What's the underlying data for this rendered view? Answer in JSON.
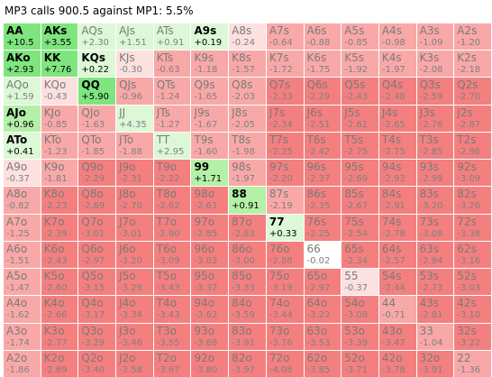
{
  "title": "MP3 calls 900.5 against MP1: 5.5%",
  "colors": {
    "call_strong": "#7fe57f",
    "call_mid": "#b4f0a8",
    "call_light": "#dcf8d6",
    "neutral": "#ffffff",
    "fold_light": "#fde0e0",
    "fold_mid": "#f9a8a8",
    "fold_strong": "#f47f7f"
  },
  "grid": {
    "rows": [
      [
        [
          "AA",
          "+10.5",
          "c"
        ],
        [
          "AKs",
          "+3.55",
          "c"
        ],
        [
          "AQs",
          "+2.30",
          "f"
        ],
        [
          "AJs",
          "+1.51",
          "f"
        ],
        [
          "ATs",
          "+0.91",
          "f"
        ],
        [
          "A9s",
          "+0.19",
          "c"
        ],
        [
          "A8s",
          "-0.24",
          "f"
        ],
        [
          "A7s",
          "-0.64",
          "f"
        ],
        [
          "A6s",
          "-0.88",
          "f"
        ],
        [
          "A5s",
          "-0.85",
          "f"
        ],
        [
          "A4s",
          "-0.98",
          "f"
        ],
        [
          "A3s",
          "-1.09",
          "f"
        ],
        [
          "A2s",
          "-1.20",
          "f"
        ]
      ],
      [
        [
          "AKo",
          "+2.93",
          "c"
        ],
        [
          "KK",
          "+7.76",
          "c"
        ],
        [
          "KQs",
          "+0.22",
          "c"
        ],
        [
          "KJs",
          "-0.30",
          "f"
        ],
        [
          "KTs",
          "-0.63",
          "f"
        ],
        [
          "K9s",
          "-1.18",
          "f"
        ],
        [
          "K8s",
          "-1.57",
          "f"
        ],
        [
          "K7s",
          "-1.72",
          "f"
        ],
        [
          "K6s",
          "-1.75",
          "f"
        ],
        [
          "K5s",
          "-1.92",
          "f"
        ],
        [
          "K4s",
          "-1.97",
          "f"
        ],
        [
          "K3s",
          "-2.08",
          "f"
        ],
        [
          "K2s",
          "-2.18",
          "f"
        ]
      ],
      [
        [
          "AQo",
          "+1.59",
          "f"
        ],
        [
          "KQo",
          "-0.43",
          "f"
        ],
        [
          "QQ",
          "+5.90",
          "c"
        ],
        [
          "QJs",
          "-0.96",
          "f"
        ],
        [
          "QTs",
          "-1.24",
          "f"
        ],
        [
          "Q9s",
          "-1.65",
          "f"
        ],
        [
          "Q8s",
          "-2.03",
          "f"
        ],
        [
          "Q7s",
          "-2.33",
          "f"
        ],
        [
          "Q6s",
          "-2.29",
          "f"
        ],
        [
          "Q5s",
          "-2.43",
          "f"
        ],
        [
          "Q4s",
          "-2.48",
          "f"
        ],
        [
          "Q3s",
          "-2.59",
          "f"
        ],
        [
          "Q2s",
          "-2.70",
          "f"
        ]
      ],
      [
        [
          "AJo",
          "+0.96",
          "c"
        ],
        [
          "KJo",
          "-0.85",
          "f"
        ],
        [
          "QJo",
          "-1.63",
          "f"
        ],
        [
          "JJ",
          "+4.35",
          "f"
        ],
        [
          "JTs",
          "-1.27",
          "f"
        ],
        [
          "J9s",
          "-1.67",
          "f"
        ],
        [
          "J8s",
          "-2.05",
          "f"
        ],
        [
          "J7s",
          "-2.34",
          "f"
        ],
        [
          "J6s",
          "-2.51",
          "f"
        ],
        [
          "J5s",
          "-2.61",
          "f"
        ],
        [
          "J4s",
          "-2.65",
          "f"
        ],
        [
          "J3s",
          "-2.76",
          "f"
        ],
        [
          "J2s",
          "-2.87",
          "f"
        ]
      ],
      [
        [
          "ATo",
          "+0.41",
          "c"
        ],
        [
          "KTo",
          "-1.23",
          "f"
        ],
        [
          "QTo",
          "-1.85",
          "f"
        ],
        [
          "JTo",
          "-1.88",
          "f"
        ],
        [
          "TT",
          "+2.95",
          "f"
        ],
        [
          "T9s",
          "-1.60",
          "f"
        ],
        [
          "T8s",
          "-1.98",
          "f"
        ],
        [
          "T7s",
          "-2.25",
          "f"
        ],
        [
          "T6s",
          "-2.42",
          "f"
        ],
        [
          "T5s",
          "-2.75",
          "f"
        ],
        [
          "T4s",
          "-2.75",
          "f"
        ],
        [
          "T3s",
          "-2.85",
          "f"
        ],
        [
          "T2s",
          "-2.96",
          "f"
        ]
      ],
      [
        [
          "A9o",
          "-0.37",
          "f"
        ],
        [
          "K9o",
          "-1.81",
          "f"
        ],
        [
          "Q9o",
          "-2.29",
          "f"
        ],
        [
          "J9o",
          "-2.31",
          "f"
        ],
        [
          "T9o",
          "-2.22",
          "f"
        ],
        [
          "99",
          "+1.71",
          "c"
        ],
        [
          "98s",
          "-1.97",
          "f"
        ],
        [
          "97s",
          "-2.20",
          "f"
        ],
        [
          "96s",
          "-2.37",
          "f"
        ],
        [
          "95s",
          "-2.69",
          "f"
        ],
        [
          "94s",
          "-2.93",
          "f"
        ],
        [
          "93s",
          "-2.99",
          "f"
        ],
        [
          "92s",
          "-3.09",
          "f"
        ]
      ],
      [
        [
          "A8o",
          "-0.82",
          "f"
        ],
        [
          "K8o",
          "-2.23",
          "f"
        ],
        [
          "Q8o",
          "-2.69",
          "f"
        ],
        [
          "J8o",
          "-2.70",
          "f"
        ],
        [
          "T8o",
          "-2.62",
          "f"
        ],
        [
          "98o",
          "-2.61",
          "f"
        ],
        [
          "88",
          "+0.91",
          "c"
        ],
        [
          "87s",
          "-2.19",
          "f"
        ],
        [
          "86s",
          "-2.35",
          "f"
        ],
        [
          "85s",
          "-2.67",
          "f"
        ],
        [
          "84s",
          "-2.91",
          "f"
        ],
        [
          "83s",
          "-3.20",
          "f"
        ],
        [
          "82s",
          "-3.26",
          "f"
        ]
      ],
      [
        [
          "A7o",
          "-1.25",
          "f"
        ],
        [
          "K7o",
          "-2.39",
          "f"
        ],
        [
          "Q7o",
          "-3.01",
          "f"
        ],
        [
          "J7o",
          "-3.01",
          "f"
        ],
        [
          "T7o",
          "-2.90",
          "f"
        ],
        [
          "97o",
          "-2.85",
          "f"
        ],
        [
          "87o",
          "-2.83",
          "f"
        ],
        [
          "77",
          "+0.33",
          "c"
        ],
        [
          "76s",
          "-2.25",
          "f"
        ],
        [
          "75s",
          "-2.54",
          "f"
        ],
        [
          "74s",
          "-2.78",
          "f"
        ],
        [
          "73s",
          "-3.08",
          "f"
        ],
        [
          "72s",
          "-3.38",
          "f"
        ]
      ],
      [
        [
          "A6o",
          "-1.51",
          "f"
        ],
        [
          "K6o",
          "-2.43",
          "f"
        ],
        [
          "Q6o",
          "-2.97",
          "f"
        ],
        [
          "J6o",
          "-3.20",
          "f"
        ],
        [
          "T6o",
          "-3.09",
          "f"
        ],
        [
          "96o",
          "-3.03",
          "f"
        ],
        [
          "86o",
          "-3.00",
          "f"
        ],
        [
          "76o",
          "-2.88",
          "f"
        ],
        [
          "66",
          "-0.02",
          "f"
        ],
        [
          "65s",
          "-2.34",
          "f"
        ],
        [
          "64s",
          "-2.57",
          "f"
        ],
        [
          "63s",
          "-2.94",
          "f"
        ],
        [
          "62s",
          "-3.16",
          "f"
        ]
      ],
      [
        [
          "A5o",
          "-1.47",
          "f"
        ],
        [
          "K5o",
          "-2.60",
          "f"
        ],
        [
          "Q5o",
          "-3.15",
          "f"
        ],
        [
          "J5o",
          "-3.29",
          "f"
        ],
        [
          "T5o",
          "-3.43",
          "f"
        ],
        [
          "95o",
          "-3.37",
          "f"
        ],
        [
          "85o",
          "-3.33",
          "f"
        ],
        [
          "75o",
          "-3.19",
          "f"
        ],
        [
          "65o",
          "-2.97",
          "f"
        ],
        [
          "55",
          "-0.37",
          "f"
        ],
        [
          "54s",
          "-2.44",
          "f"
        ],
        [
          "53s",
          "-2.73",
          "f"
        ],
        [
          "52s",
          "-3.03",
          "f"
        ]
      ],
      [
        [
          "A4o",
          "-1.62",
          "f"
        ],
        [
          "K4o",
          "-2.66",
          "f"
        ],
        [
          "Q4o",
          "-3.17",
          "f"
        ],
        [
          "J4o",
          "-3.34",
          "f"
        ],
        [
          "T4o",
          "-3.43",
          "f"
        ],
        [
          "94o",
          "-3.62",
          "f"
        ],
        [
          "84o",
          "-3.59",
          "f"
        ],
        [
          "74o",
          "-3.44",
          "f"
        ],
        [
          "64o",
          "-3.22",
          "f"
        ],
        [
          "54o",
          "-3.08",
          "f"
        ],
        [
          "44",
          "-0.71",
          "f"
        ],
        [
          "43s",
          "-2.81",
          "f"
        ],
        [
          "42s",
          "-3.10",
          "f"
        ]
      ],
      [
        [
          "A3o",
          "-1.74",
          "f"
        ],
        [
          "K3o",
          "-2.77",
          "f"
        ],
        [
          "Q3o",
          "-3.29",
          "f"
        ],
        [
          "J3o",
          "-3.46",
          "f"
        ],
        [
          "T3o",
          "-3.55",
          "f"
        ],
        [
          "93o",
          "-3.68",
          "f"
        ],
        [
          "83o",
          "-3.91",
          "f"
        ],
        [
          "73o",
          "-3.76",
          "f"
        ],
        [
          "63o",
          "-3.53",
          "f"
        ],
        [
          "53o",
          "-3.39",
          "f"
        ],
        [
          "43o",
          "-3.47",
          "f"
        ],
        [
          "33",
          "-1.04",
          "f"
        ],
        [
          "32s",
          "-3.22",
          "f"
        ]
      ],
      [
        [
          "A2o",
          "-1.86",
          "f"
        ],
        [
          "K2o",
          "-2.89",
          "f"
        ],
        [
          "Q2o",
          "-3.40",
          "f"
        ],
        [
          "J2o",
          "-3.58",
          "f"
        ],
        [
          "T2o",
          "-3.67",
          "f"
        ],
        [
          "92o",
          "-3.80",
          "f"
        ],
        [
          "82o",
          "-3.97",
          "f"
        ],
        [
          "72o",
          "-4.08",
          "f"
        ],
        [
          "62o",
          "-3.85",
          "f"
        ],
        [
          "52o",
          "-3.71",
          "f"
        ],
        [
          "42o",
          "-3.78",
          "f"
        ],
        [
          "32o",
          "-3.91",
          "f"
        ],
        [
          "22",
          "-1.36",
          "f"
        ]
      ]
    ]
  }
}
